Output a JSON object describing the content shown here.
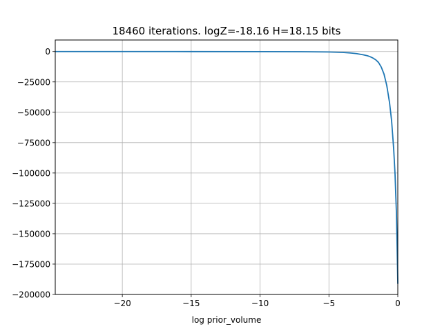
{
  "chart_data": {
    "type": "line",
    "title": "18460 iterations. logZ=-18.16 H=18.15 bits",
    "xlabel": "log prior_volume",
    "ylabel": "",
    "xlim": [
      -24.87,
      0
    ],
    "ylim": [
      -200000,
      9500
    ],
    "xticks": [
      {
        "value": -20,
        "label": "−20"
      },
      {
        "value": -15,
        "label": "−15"
      },
      {
        "value": -10,
        "label": "−10"
      },
      {
        "value": -5,
        "label": "−5"
      },
      {
        "value": 0,
        "label": "0"
      }
    ],
    "yticks": [
      {
        "value": 0,
        "label": "0"
      },
      {
        "value": -25000,
        "label": "−25000"
      },
      {
        "value": -50000,
        "label": "−50000"
      },
      {
        "value": -75000,
        "label": "−75000"
      },
      {
        "value": -100000,
        "label": "−100000"
      },
      {
        "value": -125000,
        "label": "−125000"
      },
      {
        "value": -150000,
        "label": "−150000"
      },
      {
        "value": -175000,
        "label": "−175000"
      },
      {
        "value": -200000,
        "label": "−200000"
      }
    ],
    "grid": true,
    "series": [
      {
        "color": "#1f77b4",
        "x": [
          -24.87,
          -20,
          -15,
          -10,
          -7,
          -5,
          -4,
          -3.5,
          -3,
          -2.5,
          -2.2,
          -2.0,
          -1.8,
          -1.6,
          -1.4,
          -1.2,
          -1.0,
          -0.8,
          -0.6,
          -0.45,
          -0.3,
          -0.2,
          -0.1,
          -0.05,
          0
        ],
        "y": [
          -10,
          -20,
          -30,
          -60,
          -150,
          -350,
          -700,
          -1100,
          -1700,
          -2700,
          -3500,
          -4300,
          -5400,
          -6800,
          -9000,
          -12800,
          -18600,
          -28000,
          -42000,
          -57000,
          -80000,
          -101000,
          -133000,
          -160000,
          -191000
        ]
      }
    ]
  },
  "colors": {
    "line": "#1f77b4",
    "grid": "#b0b0b0",
    "axes": "#000000",
    "background": "#ffffff"
  }
}
